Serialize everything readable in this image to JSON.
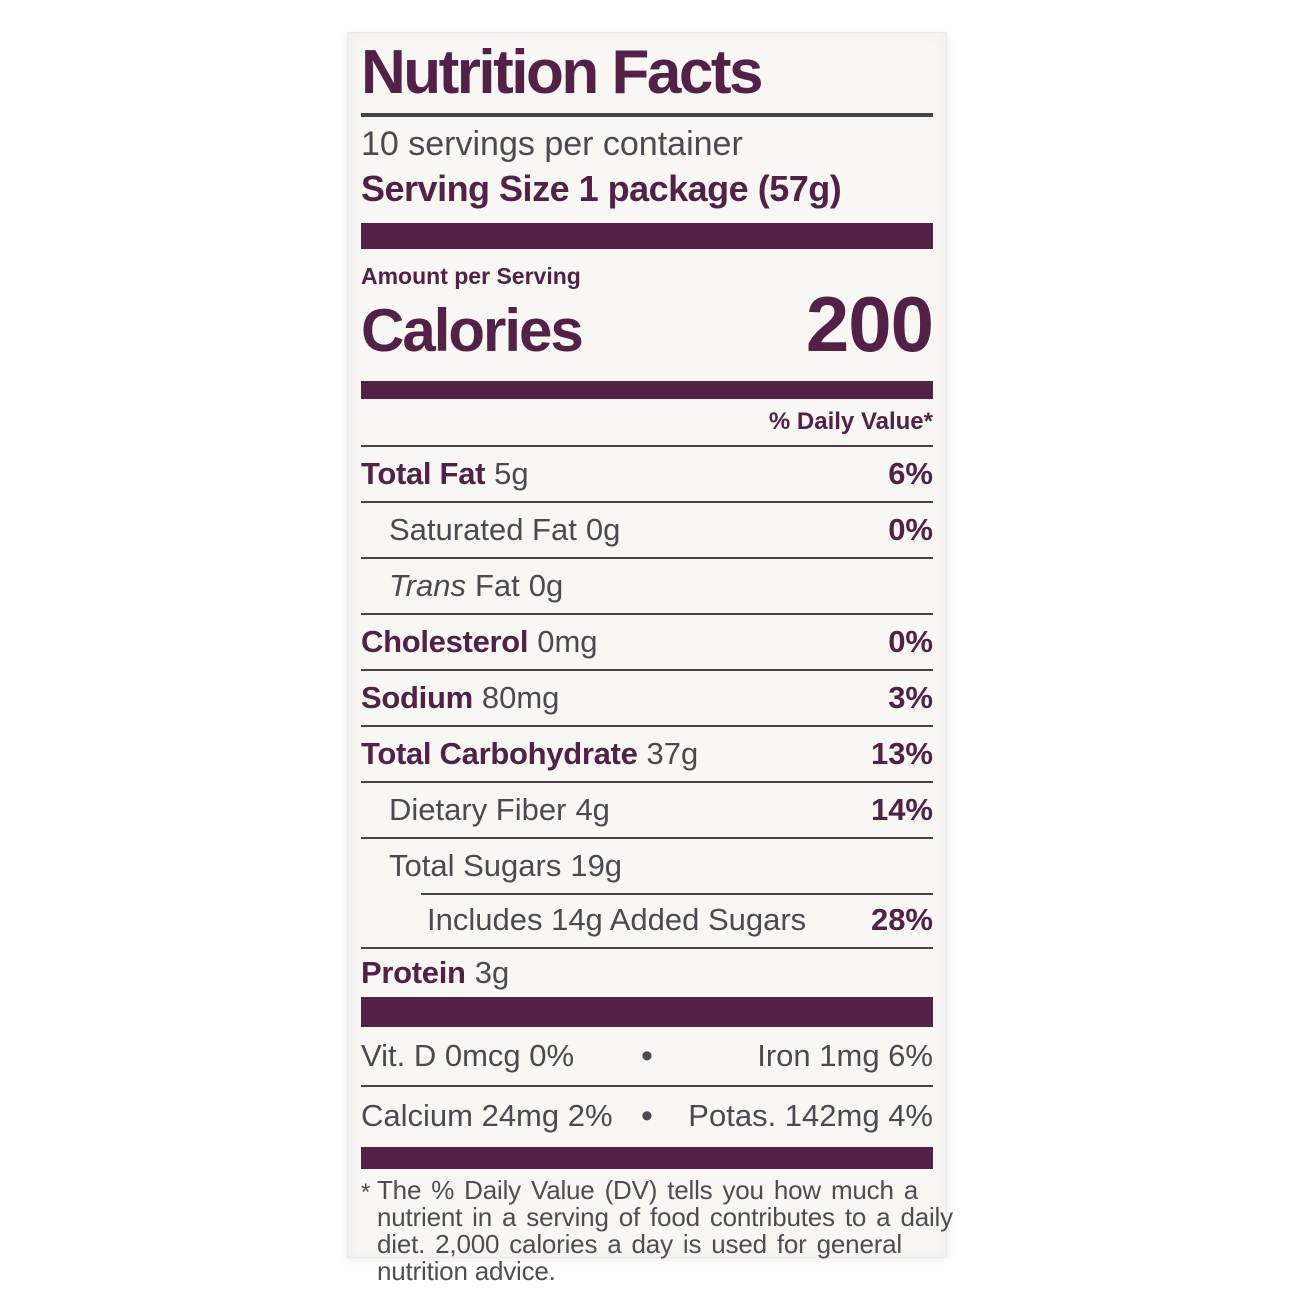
{
  "colors": {
    "brand_plum": "#532148",
    "text_gray": "#4f4850",
    "label_bg": "#f8f7f4"
  },
  "header": {
    "title": "Nutrition Facts",
    "servings_per_container": "10 servings per container",
    "serving_size": "Serving Size 1 package (57g)"
  },
  "calories": {
    "amount_label": "Amount per Serving",
    "label": "Calories",
    "value": "200"
  },
  "daily_value_header": "% Daily Value*",
  "rows": [
    {
      "name": "Total Fat",
      "amount": "5g",
      "dv": "6%"
    },
    {
      "name": "Saturated Fat",
      "amount": "0g",
      "dv": "0%"
    },
    {
      "name_italic": "Trans",
      "name_rest": "Fat",
      "amount": "0g",
      "dv": ""
    },
    {
      "name": "Cholesterol",
      "amount": "0mg",
      "dv": "0%"
    },
    {
      "name": "Sodium",
      "amount": "80mg",
      "dv": "3%"
    },
    {
      "name": "Total Carbohydrate",
      "amount": "37g",
      "dv": "13%"
    },
    {
      "name": "Dietary Fiber",
      "amount": "4g",
      "dv": "14%"
    },
    {
      "name": "Total Sugars",
      "amount": "19g",
      "dv": ""
    },
    {
      "name": "Includes 14g Added Sugars",
      "amount": "",
      "dv": "28%"
    },
    {
      "name": "Protein",
      "amount": "3g",
      "dv": ""
    }
  ],
  "micronutrients": {
    "row1": {
      "left": "Vit. D 0mcg 0%",
      "bullet": "•",
      "right": "Iron 1mg 6%"
    },
    "row2": {
      "left": "Calcium 24mg 2%",
      "bullet": "•",
      "right": "Potas. 142mg 4%"
    }
  },
  "footnote": {
    "asterisk": "*",
    "lines": [
      "The % Daily Value (DV) tells you how much a",
      "nutrient in a serving of food contributes to a daily",
      "diet. 2,000 calories a day is used for general",
      "nutrition advice."
    ]
  }
}
